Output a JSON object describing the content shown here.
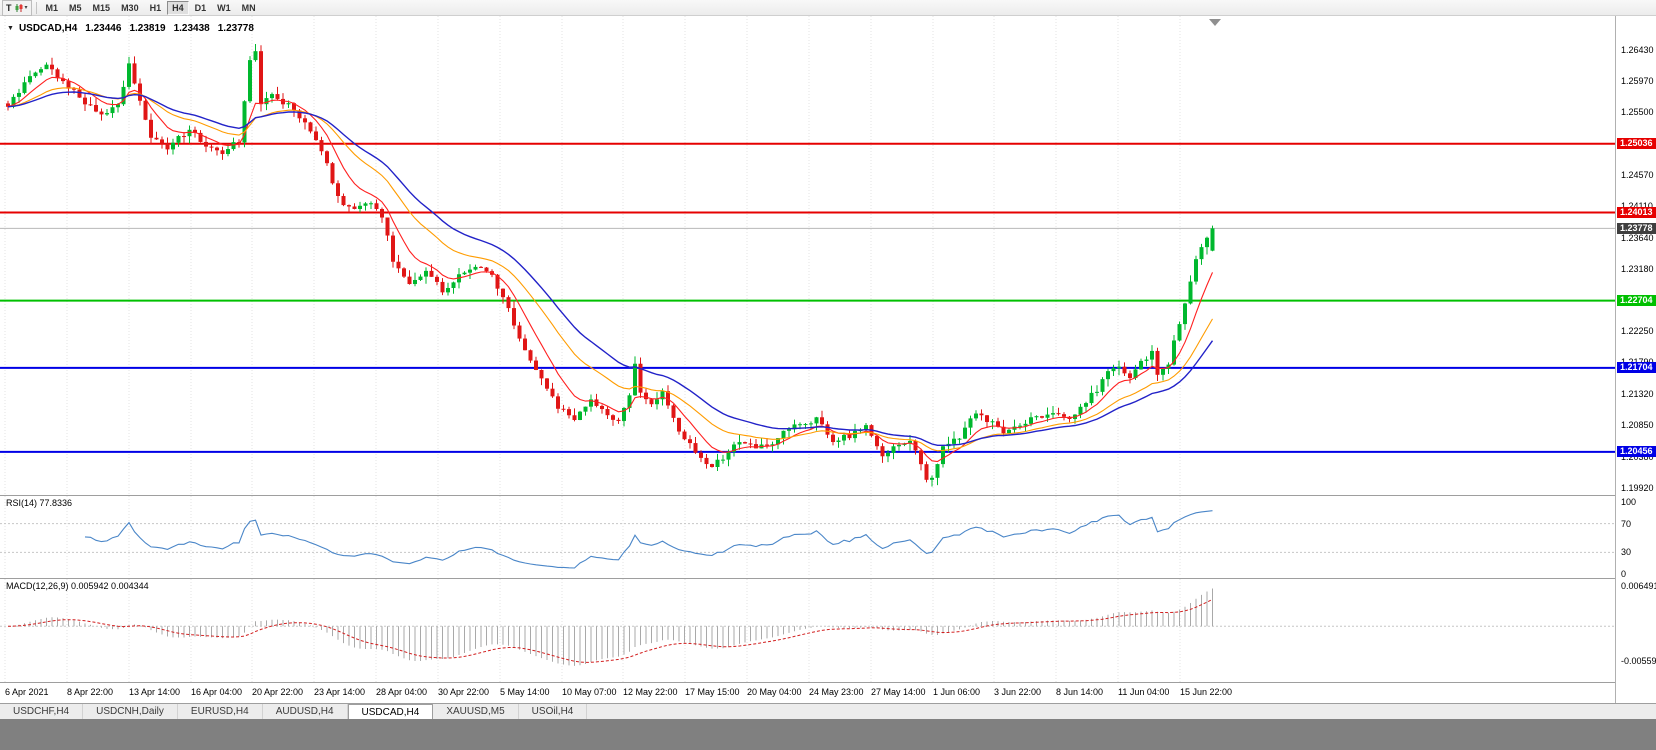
{
  "toolbar": {
    "chart_mode_label": "T",
    "dropdown_caret": "▾",
    "timeframes": [
      "M1",
      "M5",
      "M15",
      "M30",
      "H1",
      "H4",
      "D1",
      "W1",
      "MN"
    ],
    "active_timeframe": "H4"
  },
  "chart": {
    "collapse_arrow": "▼",
    "title": "USDCAD,H4",
    "ohlc": [
      "1.23446",
      "1.23819",
      "1.23438",
      "1.23778"
    ],
    "bid_label": "1.23778",
    "bid_price": 1.23778,
    "price_ticks": [
      "1.26430",
      "1.25970",
      "1.25500",
      "1.25030",
      "1.24570",
      "1.24110",
      "1.23640",
      "1.23180",
      "1.22720",
      "1.22250",
      "1.21790",
      "1.21320",
      "1.20850",
      "1.20380",
      "1.19920"
    ],
    "hlines": [
      {
        "label": "1.25036",
        "price": 1.25036,
        "color": "#e60000"
      },
      {
        "label": "1.24013",
        "price": 1.24013,
        "color": "#e60000"
      },
      {
        "label": "1.22704",
        "price": 1.22704,
        "color": "#00c000"
      },
      {
        "label": "1.21704",
        "price": 1.21704,
        "color": "#0000e6"
      },
      {
        "label": "1.20456",
        "price": 1.20456,
        "color": "#0000e6"
      }
    ],
    "time_labels": [
      "6 Apr 2021",
      "8 Apr 22:00",
      "13 Apr 14:00",
      "16 Apr 04:00",
      "20 Apr 22:00",
      "23 Apr 14:00",
      "28 Apr 04:00",
      "30 Apr 22:00",
      "5 May 14:00",
      "10 May 07:00",
      "12 May 22:00",
      "17 May 15:00",
      "20 May 04:00",
      "24 May 23:00",
      "27 May 14:00",
      "1 Jun 06:00",
      "3 Jun 22:00",
      "8 Jun 14:00",
      "11 Jun 04:00",
      "15 Jun 22:00"
    ]
  },
  "rsi": {
    "label": "RSI(14) 77.8336",
    "current": "77.8336",
    "axis": [
      "100",
      "70",
      "30",
      "0"
    ]
  },
  "macd": {
    "label": "MACD(12,26,9) 0.005942 0.004344",
    "main": "0.005942",
    "signal": "0.004344",
    "axis_max": "0.006491",
    "axis_min": "-0.005593"
  },
  "tabs": {
    "items": [
      {
        "label": "USDCHF,H4",
        "active": false
      },
      {
        "label": "USDCNH,Daily",
        "active": false
      },
      {
        "label": "EURUSD,H4",
        "active": false
      },
      {
        "label": "AUDUSD,H4",
        "active": false
      },
      {
        "label": "USDCAD,H4",
        "active": true
      },
      {
        "label": "XAUUSD,M5",
        "active": false
      },
      {
        "label": "USOil,H4",
        "active": false
      }
    ]
  },
  "chart_data": {
    "type": "candlestick",
    "symbol": "USDCAD",
    "timeframe": "H4",
    "candle_count": 220,
    "price_top": 1.268,
    "price_bottom": 1.1989,
    "last_candle": {
      "open": 1.23446,
      "high": 1.23819,
      "low": 1.23438,
      "close": 1.23778
    },
    "hline_values": [
      1.25036,
      1.24013,
      1.22704,
      1.21704,
      1.20456
    ],
    "moving_averages": [
      {
        "period": 8,
        "color": "#ff2020"
      },
      {
        "period": 20,
        "color": "#ff9c00"
      },
      {
        "period": 30,
        "color": "#2222c8"
      }
    ],
    "rsi": {
      "period": 14,
      "levels": [
        70,
        30
      ]
    },
    "macd": {
      "fast": 12,
      "slow": 26,
      "signal": 9
    },
    "anchors": [
      [
        0,
        1.256
      ],
      [
        4,
        1.2605
      ],
      [
        7,
        1.2618
      ],
      [
        10,
        1.2595
      ],
      [
        14,
        1.2565
      ],
      [
        17,
        1.2545
      ],
      [
        20,
        1.256
      ],
      [
        22,
        1.2622
      ],
      [
        24,
        1.2565
      ],
      [
        26,
        1.2512
      ],
      [
        29,
        1.2498
      ],
      [
        33,
        1.2525
      ],
      [
        36,
        1.25
      ],
      [
        39,
        1.249
      ],
      [
        42,
        1.2508
      ],
      [
        44,
        1.2628
      ],
      [
        45,
        1.2642
      ],
      [
        46,
        1.2562
      ],
      [
        48,
        1.2578
      ],
      [
        51,
        1.256
      ],
      [
        53,
        1.2542
      ],
      [
        56,
        1.2512
      ],
      [
        58,
        1.2472
      ],
      [
        60,
        1.2422
      ],
      [
        63,
        1.2405
      ],
      [
        66,
        1.2418
      ],
      [
        68,
        1.2396
      ],
      [
        70,
        1.2332
      ],
      [
        73,
        1.2298
      ],
      [
        76,
        1.2312
      ],
      [
        79,
        1.2286
      ],
      [
        82,
        1.2306
      ],
      [
        85,
        1.232
      ],
      [
        88,
        1.2308
      ],
      [
        91,
        1.2256
      ],
      [
        94,
        1.2196
      ],
      [
        97,
        1.2152
      ],
      [
        100,
        1.2112
      ],
      [
        103,
        1.2092
      ],
      [
        106,
        1.2124
      ],
      [
        108,
        1.2108
      ],
      [
        111,
        1.2088
      ],
      [
        113,
        1.2132
      ],
      [
        114,
        1.2178
      ],
      [
        115,
        1.2134
      ],
      [
        117,
        1.212
      ],
      [
        119,
        1.2132
      ],
      [
        122,
        1.2078
      ],
      [
        125,
        1.2048
      ],
      [
        128,
        1.2022
      ],
      [
        130,
        1.2038
      ],
      [
        133,
        1.2062
      ],
      [
        136,
        1.2052
      ],
      [
        139,
        1.2056
      ],
      [
        142,
        1.2082
      ],
      [
        145,
        1.2088
      ],
      [
        147,
        1.2094
      ],
      [
        150,
        1.2062
      ],
      [
        153,
        1.207
      ],
      [
        156,
        1.2082
      ],
      [
        159,
        1.2042
      ],
      [
        162,
        1.2056
      ],
      [
        164,
        1.2062
      ],
      [
        166,
        1.203
      ],
      [
        167,
        1.2002
      ],
      [
        168,
        1.201
      ],
      [
        170,
        1.2052
      ],
      [
        173,
        1.2068
      ],
      [
        176,
        1.2104
      ],
      [
        179,
        1.2088
      ],
      [
        181,
        1.2072
      ],
      [
        184,
        1.2088
      ],
      [
        187,
        1.2098
      ],
      [
        190,
        1.2102
      ],
      [
        193,
        1.2092
      ],
      [
        196,
        1.2122
      ],
      [
        198,
        1.2138
      ],
      [
        200,
        1.2168
      ],
      [
        202,
        1.2172
      ],
      [
        204,
        1.2158
      ],
      [
        206,
        1.2178
      ],
      [
        208,
        1.2194
      ],
      [
        209,
        1.2162
      ],
      [
        211,
        1.2178
      ],
      [
        213,
        1.2238
      ],
      [
        215,
        1.2302
      ],
      [
        216,
        1.233
      ],
      [
        217,
        1.2352
      ],
      [
        218,
        1.2366
      ],
      [
        219,
        1.23778
      ]
    ]
  }
}
